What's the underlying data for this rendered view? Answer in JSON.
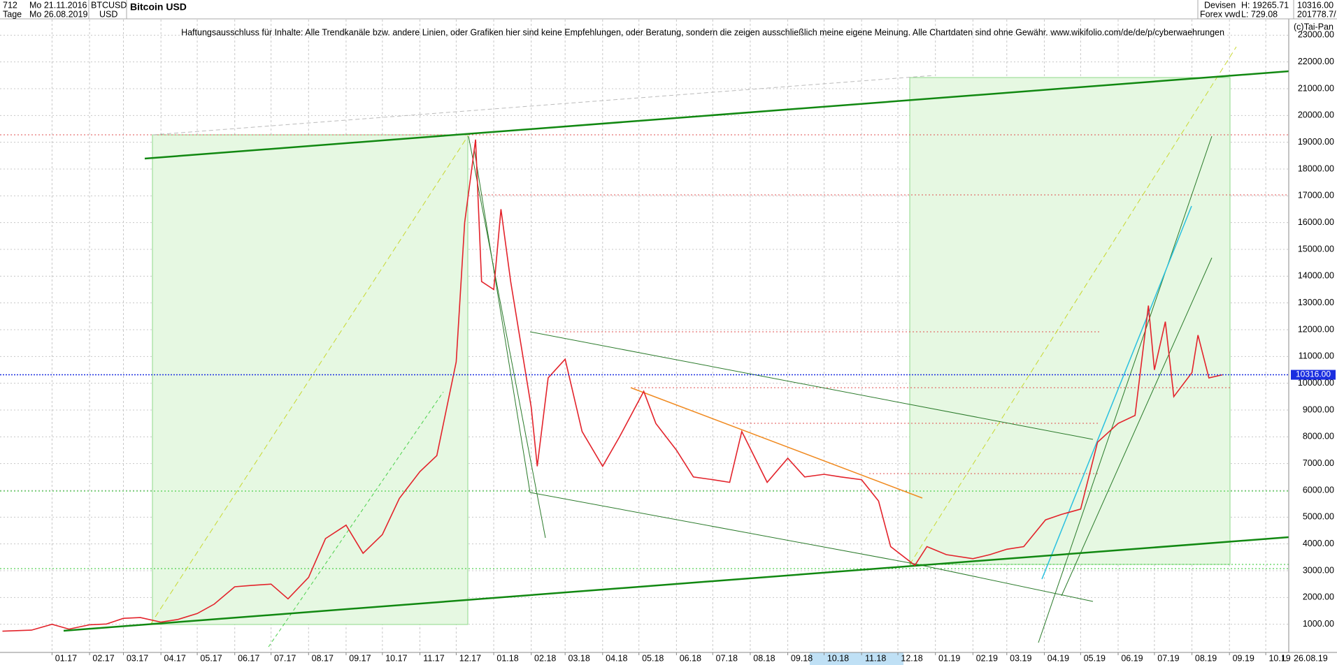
{
  "header": {
    "count": "712",
    "start": "Mo 21.11.2016",
    "period": "Tage",
    "end": "Mo 26.08.2019",
    "symbol": "BTCUSD",
    "currency": "USD",
    "market": "Devisen",
    "source": "Forex vwd",
    "high": "H: 19265.71",
    "low": "L: 729.08",
    "last": "10316.00",
    "volume": "201778.7/",
    "vendor": "(c)Tai-Pan",
    "footer_date": "26.08.19",
    "footer_mode": "L"
  },
  "chart_data": {
    "type": "line",
    "title": "Bitcoin USD",
    "annotation": "Haftungsausschluss für Inhalte: Alle Trendkanäle bzw. andere Linien, oder Grafiken hier sind keine Empfehlungen, oder Beratung, sondern die zeigen ausschließlich meine eigene Meinung. Alle Chartdaten sind ohne Gewähr.  www.wikifolio.com/de/de/p/cyberwaehrungen",
    "series": [
      {
        "name": "BTCUSD",
        "color": "#e3232b",
        "x": [
          "2016-11-21",
          "2016-12-15",
          "2017-01-01",
          "2017-01-15",
          "2017-02-01",
          "2017-02-15",
          "2017-03-01",
          "2017-03-15",
          "2017-04-01",
          "2017-04-15",
          "2017-05-01",
          "2017-05-15",
          "2017-06-01",
          "2017-06-15",
          "2017-07-01",
          "2017-07-15",
          "2017-08-01",
          "2017-08-15",
          "2017-09-01",
          "2017-09-15",
          "2017-10-01",
          "2017-10-15",
          "2017-11-01",
          "2017-11-15",
          "2017-12-01",
          "2017-12-08",
          "2017-12-17",
          "2017-12-22",
          "2018-01-01",
          "2018-01-07",
          "2018-01-15",
          "2018-02-01",
          "2018-02-06",
          "2018-02-15",
          "2018-03-01",
          "2018-03-15",
          "2018-04-01",
          "2018-04-15",
          "2018-05-05",
          "2018-05-15",
          "2018-06-01",
          "2018-06-15",
          "2018-07-01",
          "2018-07-15",
          "2018-07-25",
          "2018-08-15",
          "2018-09-01",
          "2018-09-15",
          "2018-10-01",
          "2018-10-15",
          "2018-11-01",
          "2018-11-15",
          "2018-11-25",
          "2018-12-15",
          "2018-12-25",
          "2019-01-10",
          "2019-02-01",
          "2019-02-15",
          "2019-03-01",
          "2019-03-15",
          "2019-04-02",
          "2019-04-15",
          "2019-05-01",
          "2019-05-15",
          "2019-06-01",
          "2019-06-15",
          "2019-06-26",
          "2019-07-01",
          "2019-07-10",
          "2019-07-17",
          "2019-08-01",
          "2019-08-06",
          "2019-08-15",
          "2019-08-26"
        ],
        "values": [
          740,
          780,
          1000,
          820,
          980,
          1010,
          1220,
          1250,
          1080,
          1180,
          1400,
          1750,
          2400,
          2450,
          2500,
          1950,
          2750,
          4200,
          4700,
          3650,
          4350,
          5700,
          6700,
          7300,
          10800,
          16000,
          19100,
          13800,
          13500,
          16500,
          13800,
          9100,
          6900,
          10200,
          10900,
          8200,
          6900,
          8000,
          9700,
          8500,
          7500,
          6500,
          6400,
          6300,
          8200,
          6300,
          7200,
          6500,
          6600,
          6500,
          6400,
          5600,
          3900,
          3200,
          3900,
          3600,
          3450,
          3600,
          3800,
          3900,
          4900,
          5100,
          5300,
          7800,
          8500,
          8800,
          12900,
          10500,
          12300,
          9500,
          10400,
          11800,
          10200,
          10316
        ]
      }
    ],
    "last_price": {
      "value": 10316,
      "label": "10316.00"
    },
    "xlim": [
      "2016-11-19",
      "2019-10-20"
    ],
    "xticks": [
      {
        "value": "2017-01-01",
        "label": "01.17"
      },
      {
        "value": "2017-02-01",
        "label": "02.17"
      },
      {
        "value": "2017-03-01",
        "label": "03.17"
      },
      {
        "value": "2017-04-01",
        "label": "04.17"
      },
      {
        "value": "2017-05-01",
        "label": "05.17"
      },
      {
        "value": "2017-06-01",
        "label": "06.17"
      },
      {
        "value": "2017-07-01",
        "label": "07.17"
      },
      {
        "value": "2017-08-01",
        "label": "08.17"
      },
      {
        "value": "2017-09-01",
        "label": "09.17"
      },
      {
        "value": "2017-10-01",
        "label": "10.17"
      },
      {
        "value": "2017-11-01",
        "label": "11.17"
      },
      {
        "value": "2017-12-01",
        "label": "12.17"
      },
      {
        "value": "2018-01-01",
        "label": "01.18"
      },
      {
        "value": "2018-02-01",
        "label": "02.18"
      },
      {
        "value": "2018-03-01",
        "label": "03.18"
      },
      {
        "value": "2018-04-01",
        "label": "04.18"
      },
      {
        "value": "2018-05-01",
        "label": "05.18"
      },
      {
        "value": "2018-06-01",
        "label": "06.18"
      },
      {
        "value": "2018-07-01",
        "label": "07.18"
      },
      {
        "value": "2018-08-01",
        "label": "08.18"
      },
      {
        "value": "2018-09-01",
        "label": "09.18"
      },
      {
        "value": "2018-10-01",
        "label": "10.18"
      },
      {
        "value": "2018-11-01",
        "label": "11.18"
      },
      {
        "value": "2018-12-01",
        "label": "12.18"
      },
      {
        "value": "2019-01-01",
        "label": "01.19"
      },
      {
        "value": "2019-02-01",
        "label": "02.19"
      },
      {
        "value": "2019-03-01",
        "label": "03.19"
      },
      {
        "value": "2019-04-01",
        "label": "04.19"
      },
      {
        "value": "2019-05-01",
        "label": "05.19"
      },
      {
        "value": "2019-06-01",
        "label": "06.19"
      },
      {
        "value": "2019-07-01",
        "label": "07.19"
      },
      {
        "value": "2019-08-01",
        "label": "08.19"
      },
      {
        "value": "2019-09-01",
        "label": "09.19"
      },
      {
        "value": "2019-10-01",
        "label": "10.19"
      }
    ],
    "ylim": [
      0,
      24000
    ],
    "yticks": [
      {
        "value": 1000,
        "label": "1000.00"
      },
      {
        "value": 2000,
        "label": "2000.00"
      },
      {
        "value": 3000,
        "label": "3000.00"
      },
      {
        "value": 4000,
        "label": "4000.00"
      },
      {
        "value": 5000,
        "label": "5000.00"
      },
      {
        "value": 6000,
        "label": "6000.00"
      },
      {
        "value": 7000,
        "label": "7000.00"
      },
      {
        "value": 8000,
        "label": "8000.00"
      },
      {
        "value": 9000,
        "label": "9000.00"
      },
      {
        "value": 10000,
        "label": "10000.00"
      },
      {
        "value": 11000,
        "label": "11000.00"
      },
      {
        "value": 12000,
        "label": "12000.00"
      },
      {
        "value": 13000,
        "label": "13000.00"
      },
      {
        "value": 14000,
        "label": "14000.00"
      },
      {
        "value": 15000,
        "label": "15000.00"
      },
      {
        "value": 16000,
        "label": "16000.00"
      },
      {
        "value": 17000,
        "label": "17000.00"
      },
      {
        "value": 18000,
        "label": "18000.00"
      },
      {
        "value": 19000,
        "label": "19000.00"
      },
      {
        "value": 20000,
        "label": "20000.00"
      },
      {
        "value": 21000,
        "label": "21000.00"
      },
      {
        "value": 22000,
        "label": "22000.00"
      },
      {
        "value": 23000,
        "label": "23000.00"
      }
    ],
    "grid": true
  }
}
